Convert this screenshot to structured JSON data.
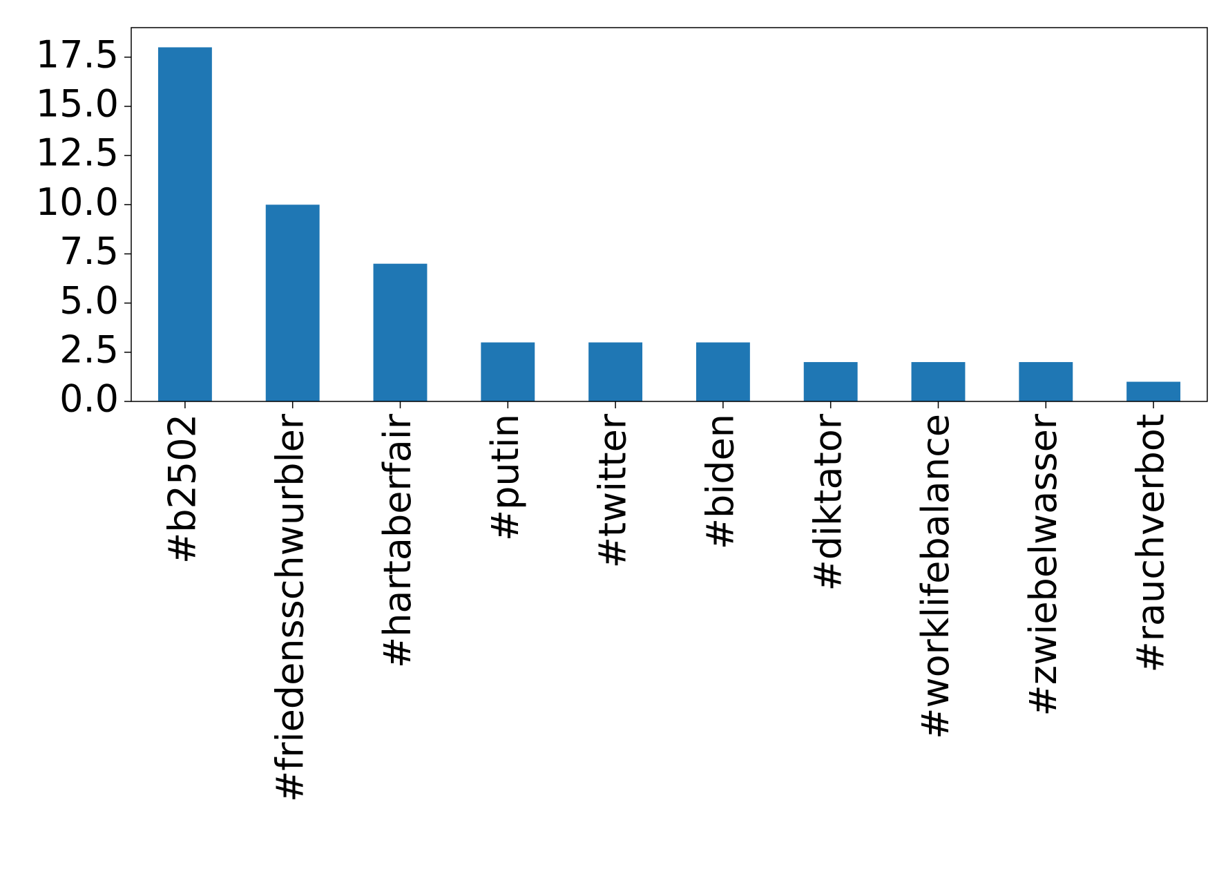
{
  "chart_data": {
    "type": "bar",
    "categories": [
      "#b2502",
      "#friedensschwurbler",
      "#hartaberfair",
      "#putin",
      "#twitter",
      "#biden",
      "#diktator",
      "#worklifebalance",
      "#zwiebelwasser",
      "#rauchverbot"
    ],
    "values": [
      18,
      10,
      7,
      3,
      3,
      3,
      2,
      2,
      2,
      1
    ],
    "color": "#1f77b4",
    "ylim": [
      0,
      19
    ],
    "yticks": [
      {
        "value": 0,
        "label": "0.0"
      },
      2.5,
      {
        "value": 5,
        "label": "5.0"
      },
      7.5,
      {
        "value": 10,
        "label": "10.0"
      },
      12.5,
      {
        "value": 15,
        "label": "15.0"
      },
      17.5
    ],
    "grid": false
  }
}
